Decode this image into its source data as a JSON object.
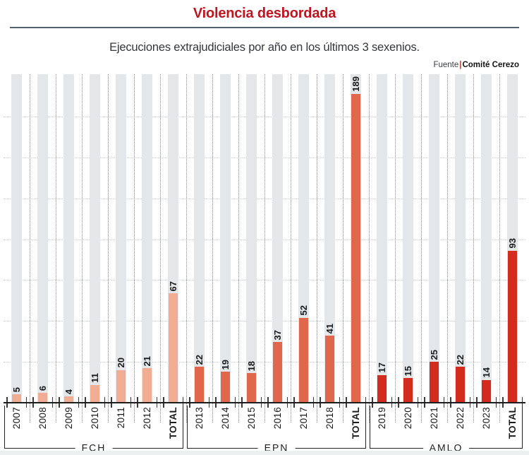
{
  "header": {
    "title": "Violencia desbordada",
    "subtitle": "Ejecuciones extrajudiciales por año en los últimos 3 sexenios.",
    "source": {
      "label": "Fuente",
      "separator": "|",
      "name": "Comité Cerezo"
    }
  },
  "colors": {
    "title_red": "#C01420",
    "divider": "#51626F",
    "column_background": "#E3E7EA",
    "fch_bar": "#F1AC94",
    "epn_bar": "#E0674B",
    "amlo_bar": "#D32B1E"
  },
  "chart_data": {
    "type": "bar",
    "title": "Violencia desbordada",
    "subtitle": "Ejecuciones extrajudiciales por año en los últimos 3 sexenios.",
    "source": "Fuente|Comité Cerezo",
    "ylim": [
      0,
      200
    ],
    "gridline_interval": 25,
    "grid": "horizontal dotted gridlines; dotted vertical separators between columns",
    "legend_position": "none",
    "value_labels": "rotated 90deg above each bar",
    "groups": [
      {
        "label": "FCH",
        "color": "#F1AC94",
        "categories": [
          "2007",
          "2008",
          "2009",
          "2010",
          "2011",
          "2012",
          "TOTAL"
        ],
        "values": [
          5,
          6,
          4,
          11,
          20,
          21,
          67
        ]
      },
      {
        "label": "EPN",
        "color": "#E0674B",
        "categories": [
          "2013",
          "2014",
          "2015",
          "2016",
          "2017",
          "2018",
          "TOTAL"
        ],
        "values": [
          22,
          19,
          18,
          37,
          52,
          41,
          189
        ]
      },
      {
        "label": "AMLO",
        "color": "#D32B1E",
        "categories": [
          "2019",
          "2020",
          "2021",
          "2022",
          "2023",
          "TOTAL"
        ],
        "values": [
          17,
          15,
          25,
          22,
          14,
          93
        ]
      }
    ]
  }
}
